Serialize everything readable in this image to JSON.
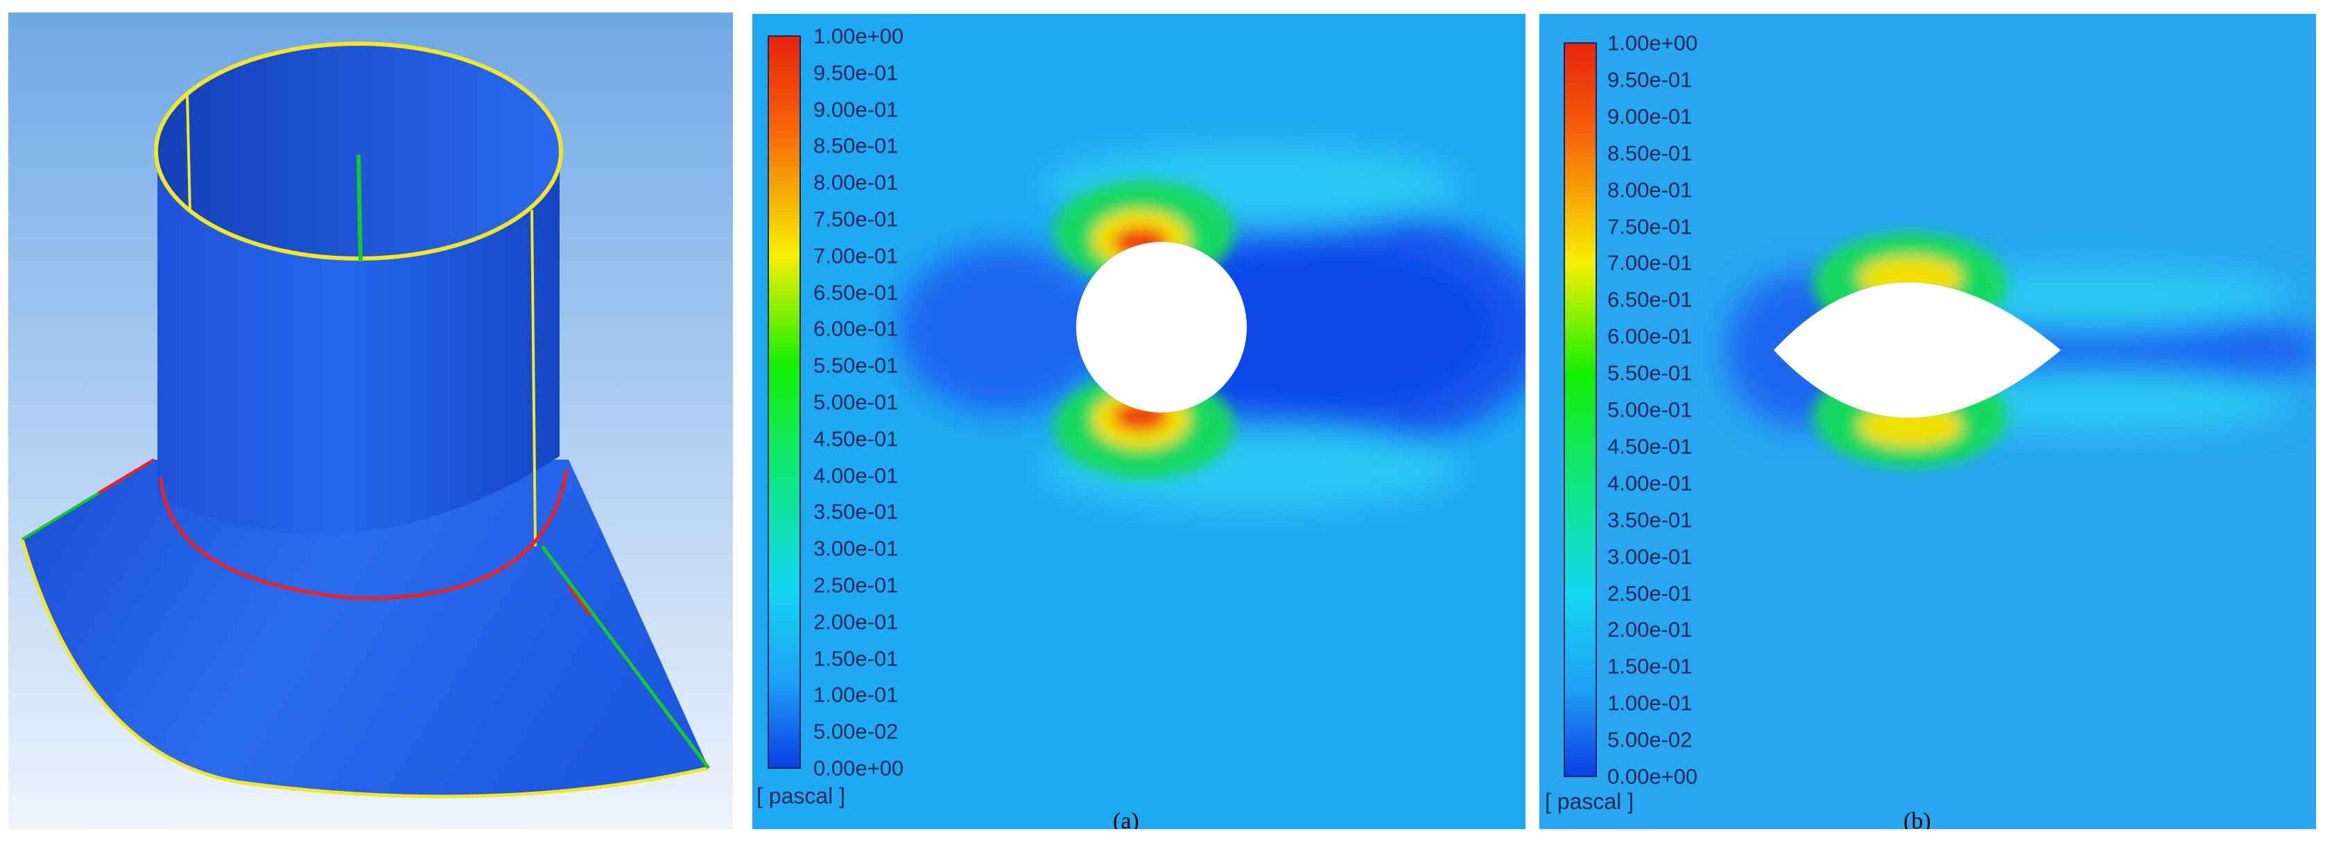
{
  "colors": {
    "contour_low": "#0a3ee6",
    "contour_mid": "#13f000",
    "contour_high": "#e8230c",
    "field": "#1fa9f2",
    "model_body": "#1d5be6",
    "edge_yellow": "#f2e629",
    "edge_red": "#ee2020",
    "edge_green": "#18c828"
  },
  "panel_a": {
    "unit": "[ pascal ]",
    "caption": "(a)",
    "ticks": [
      "1.00e+00",
      "9.50e-01",
      "9.00e-01",
      "8.50e-01",
      "8.00e-01",
      "7.50e-01",
      "7.00e-01",
      "6.50e-01",
      "6.00e-01",
      "5.50e-01",
      "5.00e-01",
      "4.50e-01",
      "4.00e-01",
      "3.50e-01",
      "3.00e-01",
      "2.50e-01",
      "2.00e-01",
      "1.50e-01",
      "1.00e-01",
      "5.00e-02",
      "0.00e+00"
    ]
  },
  "panel_b": {
    "unit": "[ pascal ]",
    "caption": "(b)",
    "ticks": [
      "1.00e+00",
      "9.50e-01",
      "9.00e-01",
      "8.50e-01",
      "8.00e-01",
      "7.50e-01",
      "7.00e-01",
      "6.50e-01",
      "6.00e-01",
      "5.50e-01",
      "5.00e-01",
      "4.50e-01",
      "4.00e-01",
      "3.50e-01",
      "3.00e-01",
      "2.50e-01",
      "2.00e-01",
      "1.50e-01",
      "1.00e-01",
      "5.00e-02",
      "0.00e+00"
    ]
  }
}
